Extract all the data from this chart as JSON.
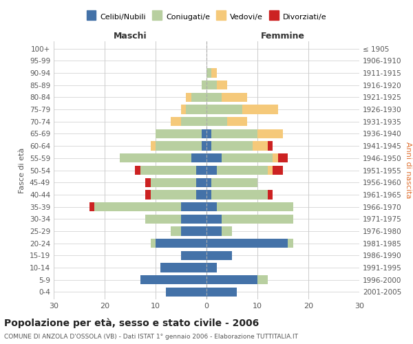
{
  "age_groups": [
    "100+",
    "95-99",
    "90-94",
    "85-89",
    "80-84",
    "75-79",
    "70-74",
    "65-69",
    "60-64",
    "55-59",
    "50-54",
    "45-49",
    "40-44",
    "35-39",
    "30-34",
    "25-29",
    "20-24",
    "15-19",
    "10-14",
    "5-9",
    "0-4"
  ],
  "birth_years": [
    "≤ 1905",
    "1906-1910",
    "1911-1915",
    "1916-1920",
    "1921-1925",
    "1926-1930",
    "1931-1935",
    "1936-1940",
    "1941-1945",
    "1946-1950",
    "1951-1955",
    "1956-1960",
    "1961-1965",
    "1966-1970",
    "1971-1975",
    "1976-1980",
    "1981-1985",
    "1986-1990",
    "1991-1995",
    "1996-2000",
    "2001-2005"
  ],
  "male": {
    "celibi": [
      0,
      0,
      0,
      0,
      0,
      0,
      0,
      1,
      1,
      3,
      2,
      2,
      2,
      5,
      5,
      5,
      10,
      5,
      9,
      13,
      8
    ],
    "coniugati": [
      0,
      0,
      0,
      1,
      3,
      4,
      5,
      9,
      9,
      14,
      11,
      9,
      9,
      17,
      7,
      2,
      1,
      0,
      0,
      0,
      0
    ],
    "vedovi": [
      0,
      0,
      0,
      0,
      1,
      1,
      2,
      0,
      1,
      0,
      0,
      0,
      0,
      0,
      0,
      0,
      0,
      0,
      0,
      0,
      0
    ],
    "divorziati": [
      0,
      0,
      0,
      0,
      0,
      0,
      0,
      0,
      0,
      0,
      1,
      1,
      1,
      1,
      0,
      0,
      0,
      0,
      0,
      0,
      0
    ]
  },
  "female": {
    "nubili": [
      0,
      0,
      0,
      0,
      0,
      0,
      0,
      1,
      1,
      3,
      2,
      1,
      1,
      2,
      3,
      3,
      16,
      5,
      2,
      10,
      6
    ],
    "coniugate": [
      0,
      0,
      1,
      2,
      3,
      7,
      4,
      9,
      8,
      10,
      10,
      9,
      11,
      15,
      14,
      2,
      1,
      0,
      0,
      2,
      0
    ],
    "vedove": [
      0,
      0,
      1,
      2,
      5,
      7,
      4,
      5,
      3,
      1,
      1,
      0,
      0,
      0,
      0,
      0,
      0,
      0,
      0,
      0,
      0
    ],
    "divorziate": [
      0,
      0,
      0,
      0,
      0,
      0,
      0,
      0,
      1,
      2,
      2,
      0,
      1,
      0,
      0,
      0,
      0,
      0,
      0,
      0,
      0
    ]
  },
  "colors": {
    "celibi": "#4472a8",
    "coniugati": "#b8cfa0",
    "vedovi": "#f5c97a",
    "divorziati": "#cc2222"
  },
  "title": "Popolazione per età, sesso e stato civile - 2006",
  "subtitle": "COMUNE DI ANZOLA D'OSSOLA (VB) - Dati ISTAT 1° gennaio 2006 - Elaborazione TUTTITALIA.IT",
  "xlabel_left": "Maschi",
  "xlabel_right": "Femmine",
  "ylabel_left": "Fasce di età",
  "ylabel_right": "Anni di nascita",
  "xlim": 30,
  "bg_color": "#ffffff",
  "grid_color": "#cccccc"
}
